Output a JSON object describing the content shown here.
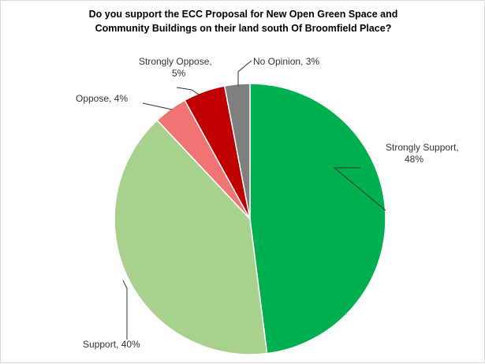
{
  "chart_data": {
    "type": "pie",
    "title": "Do you support the ECC Proposal for New Open Green Space and\nCommunity Buildings on their land south Of Broomfield Place?",
    "slices": [
      {
        "label": "Strongly Support",
        "value": 48,
        "display": "Strongly Support,|48%",
        "color": "#00b050"
      },
      {
        "label": "Support",
        "value": 40,
        "display": "Support, 40%",
        "color": "#a9d18e"
      },
      {
        "label": "Oppose",
        "value": 4,
        "display": "Oppose, 4%",
        "color": "#f07474"
      },
      {
        "label": "Strongly Oppose",
        "value": 5,
        "display": "Strongly Oppose,|5%",
        "color": "#c00000"
      },
      {
        "label": "No Opinion",
        "value": 3,
        "display": "No Opinion, 3%",
        "color": "#7f7f7f"
      }
    ],
    "start": "12 o'clock",
    "direction": "clockwise",
    "legend": "none"
  }
}
